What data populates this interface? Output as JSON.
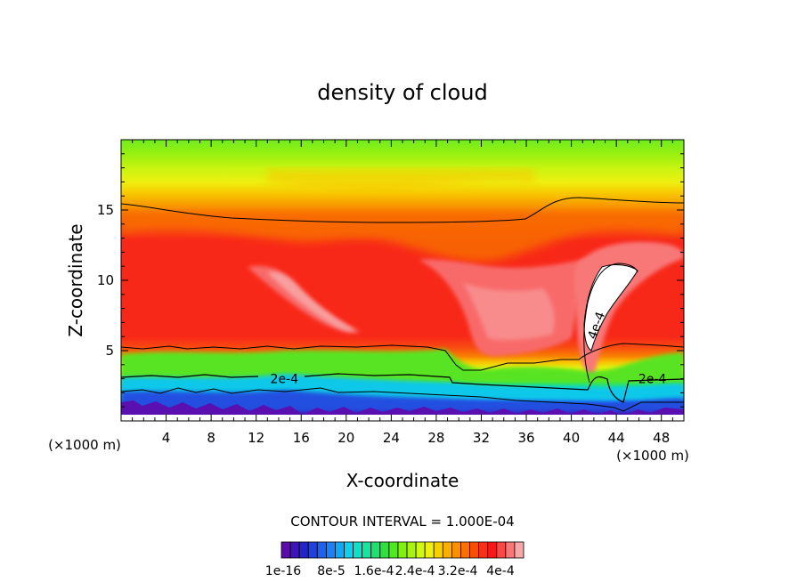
{
  "chart_data": {
    "type": "heatmap",
    "title": "density of cloud",
    "xlabel": "X-coordinate",
    "ylabel": "Z-coordinate",
    "x_units": "(×1000 m)",
    "x_units_right": "(×1000 m)",
    "xlim": [
      0,
      50
    ],
    "ylim": [
      0,
      20
    ],
    "x_ticks": [
      4,
      8,
      12,
      16,
      20,
      24,
      28,
      32,
      36,
      40,
      44,
      48
    ],
    "x_tick_labels": [
      "4",
      "8",
      "12",
      "16",
      "20",
      "24",
      "28",
      "32",
      "36",
      "40",
      "44",
      "48"
    ],
    "y_ticks": [
      5,
      10,
      15
    ],
    "y_tick_labels": [
      "5",
      "10",
      "15"
    ],
    "contour_interval": "CONTOUR INTERVAL = 1.000E-04",
    "contour_labels": [
      {
        "text": "2e-4",
        "x": 14.5,
        "y": 3.0
      },
      {
        "text": "2e-4",
        "x": 47.2,
        "y": 3.0
      },
      {
        "text": "4e-4",
        "x": 42.2,
        "y": 6.8
      }
    ],
    "colorbar": {
      "colors": [
        "#5c0ca8",
        "#3c14b8",
        "#2424cc",
        "#2040e0",
        "#2060f0",
        "#1c80f8",
        "#10a8f8",
        "#10d0f0",
        "#10e0c8",
        "#18e4a0",
        "#20e070",
        "#30e040",
        "#50e820",
        "#80f010",
        "#a8f410",
        "#d0f810",
        "#f0f010",
        "#f8d000",
        "#f8b000",
        "#f89000",
        "#f87000",
        "#f85000",
        "#f83018",
        "#f81818",
        "#f84848",
        "#f87878",
        "#f8a8a8"
      ],
      "labels": [
        "1e-16",
        "8e-5",
        "1.6e-4",
        "2.4e-4",
        "3.2e-4",
        "4e-4"
      ]
    }
  }
}
